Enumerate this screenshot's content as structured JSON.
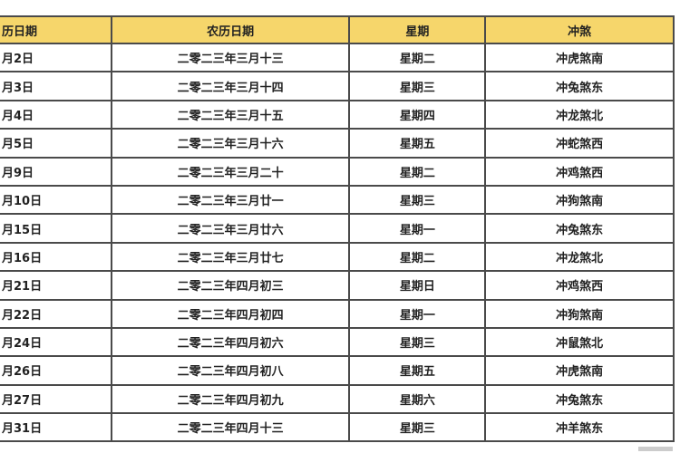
{
  "colors": {
    "header_bg": "#f6d66b",
    "border": "#4a4a4a"
  },
  "table": {
    "headers": [
      "历日期",
      "农历日期",
      "星期",
      "冲煞"
    ],
    "rows": [
      [
        "月2日",
        "二零二三年三月十三",
        "星期二",
        "冲虎煞南"
      ],
      [
        "月3日",
        "二零二三年三月十四",
        "星期三",
        "冲兔煞东"
      ],
      [
        "月4日",
        "二零二三年三月十五",
        "星期四",
        "冲龙煞北"
      ],
      [
        "月5日",
        "二零二三年三月十六",
        "星期五",
        "冲蛇煞西"
      ],
      [
        "月9日",
        "二零二三年三月二十",
        "星期二",
        "冲鸡煞西"
      ],
      [
        "月10日",
        "二零二三年三月廿一",
        "星期三",
        "冲狗煞南"
      ],
      [
        "月15日",
        "二零二三年三月廿六",
        "星期一",
        "冲兔煞东"
      ],
      [
        "月16日",
        "二零二三年三月廿七",
        "星期二",
        "冲龙煞北"
      ],
      [
        "月21日",
        "二零二三年四月初三",
        "星期日",
        "冲鸡煞西"
      ],
      [
        "月22日",
        "二零二三年四月初四",
        "星期一",
        "冲狗煞南"
      ],
      [
        "月24日",
        "二零二三年四月初六",
        "星期三",
        "冲鼠煞北"
      ],
      [
        "月26日",
        "二零二三年四月初八",
        "星期五",
        "冲虎煞南"
      ],
      [
        "月27日",
        "二零二三年四月初九",
        "星期六",
        "冲兔煞东"
      ],
      [
        "月31日",
        "二零二三年四月十三",
        "星期三",
        "冲羊煞东"
      ]
    ]
  }
}
